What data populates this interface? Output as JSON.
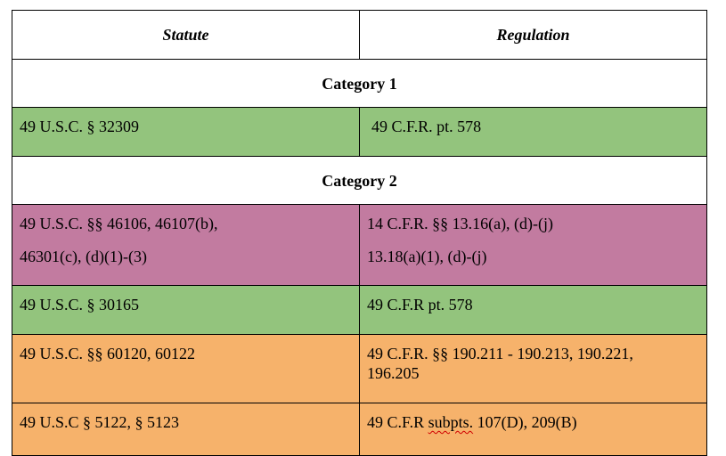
{
  "headers": {
    "statute": "Statute",
    "regulation": "Regulation"
  },
  "category1": {
    "label": "Category 1"
  },
  "category2": {
    "label": "Category 2"
  },
  "rows": [
    {
      "statute": [
        "49 U.S.C. § 32309"
      ],
      "regulation": [
        "49 C.F.R. pt. 578"
      ],
      "color": "#93c47d"
    },
    {
      "statute": [
        "49 U.S.C. §§ 46106, 46107(b),",
        "46301(c), (d)(1)-(3)"
      ],
      "regulation": [
        "14 C.F.R. §§ 13.16(a), (d)-(j)",
        "13.18(a)(1), (d)-(j)"
      ],
      "color": "#c27ba0"
    },
    {
      "statute": [
        "49 U.S.C. § 30165"
      ],
      "regulation": [
        "49 C.F.R pt. 578"
      ],
      "color": "#93c47d"
    },
    {
      "statute": [
        "49 U.S.C. §§ 60120, 60122"
      ],
      "regulation": [
        "49 C.F.R. §§ 190.211 - 190.213, 190.221,",
        "196.205"
      ],
      "color": "#f6b26b"
    },
    {
      "statute": [
        "49 U.S.C § 5122, § 5123"
      ],
      "regulation_parts": {
        "before": "49 C.F.R ",
        "flagged": "subpts.",
        "after": " 107(D), 209(B)"
      },
      "color": "#f6b26b"
    }
  ]
}
